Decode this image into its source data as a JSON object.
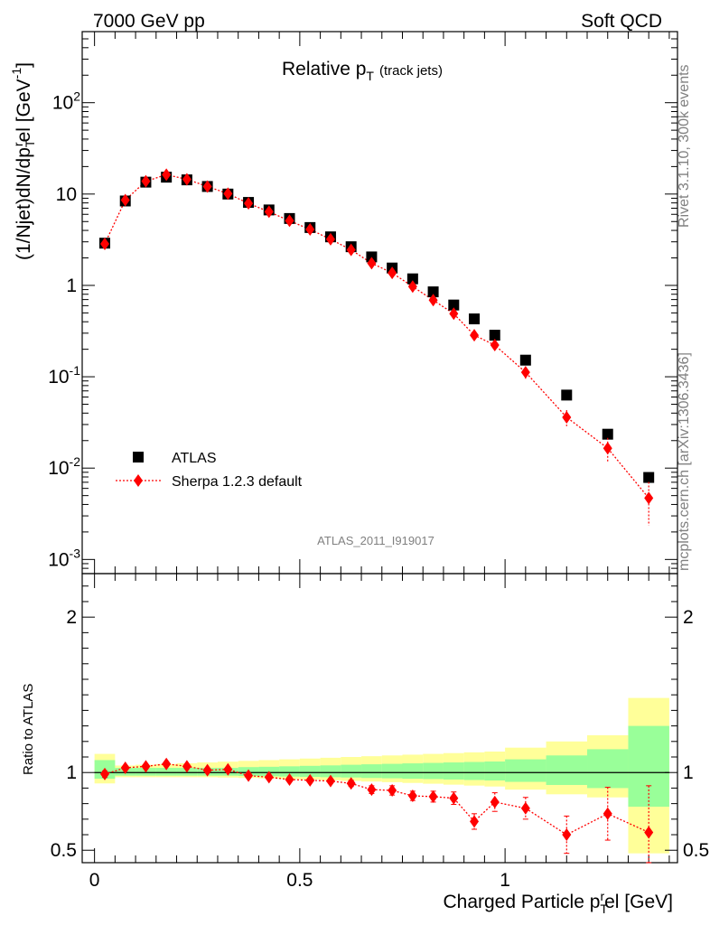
{
  "header": {
    "left": "7000 GeV pp",
    "right": "Soft QCD"
  },
  "side_labels": {
    "top": "Rivet 3.1.10,  300k events",
    "bottom": "mcplots.cern.ch [arXiv:1306.3436]"
  },
  "watermark": "ATLAS_2011_I919017",
  "plot_title": {
    "main": "Relative p",
    "sub": "T",
    "extra": "(track jets)"
  },
  "chart_data": [
    {
      "type": "scatter",
      "panel": "main",
      "ylabel": "(1/Njet)dN/dp_T^rel [GeV^-1]",
      "yscale": "log",
      "ylim": [
        0.0007,
        600
      ],
      "xlim": [
        -0.03,
        1.42
      ],
      "yticks": [
        "10^-3",
        "10^-2",
        "10^-1",
        "1",
        "10",
        "10^2"
      ],
      "legend": {
        "placement": "bottom-left",
        "entries": [
          "ATLAS",
          "Sherpa 1.2.3 default"
        ]
      },
      "x": [
        0.025,
        0.075,
        0.125,
        0.175,
        0.225,
        0.275,
        0.325,
        0.375,
        0.425,
        0.475,
        0.525,
        0.575,
        0.625,
        0.675,
        0.725,
        0.775,
        0.825,
        0.875,
        0.925,
        0.975,
        1.05,
        1.15,
        1.25,
        1.35
      ],
      "series": [
        {
          "name": "ATLAS",
          "color": "#000000",
          "marker": "square",
          "values": [
            2.9,
            8.4,
            13.5,
            15.3,
            14.3,
            12.1,
            10.0,
            8.1,
            6.7,
            5.4,
            4.3,
            3.4,
            2.65,
            2.05,
            1.55,
            1.18,
            0.85,
            0.61,
            0.43,
            0.285,
            0.152,
            0.063,
            0.0235,
            0.0079
          ]
        },
        {
          "name": "Sherpa 1.2.3 default",
          "color": "#ff0000",
          "marker": "diamond",
          "line": "dotted",
          "values": [
            2.85,
            8.6,
            13.8,
            16.3,
            14.5,
            12.1,
            10.1,
            7.9,
            6.4,
            5.1,
            4.1,
            3.2,
            2.45,
            1.75,
            1.37,
            0.97,
            0.69,
            0.49,
            0.285,
            0.222,
            0.112,
            0.036,
            0.0165,
            0.0047
          ],
          "err_frac": [
            0.03,
            0.03,
            0.03,
            0.03,
            0.03,
            0.03,
            0.03,
            0.03,
            0.03,
            0.03,
            0.03,
            0.04,
            0.05,
            0.06,
            0.06,
            0.08,
            0.08,
            0.09,
            0.12,
            0.12,
            0.15,
            0.2,
            0.3,
            0.5
          ]
        }
      ]
    },
    {
      "type": "scatter",
      "panel": "ratio",
      "ylabel": "Ratio to ATLAS",
      "xlabel": "Charged Particle p_T^rel [GeV]",
      "ylim": [
        0.42,
        2.28
      ],
      "xlim": [
        -0.03,
        1.42
      ],
      "yticks": [
        "0.5",
        "1",
        "2"
      ],
      "xticks": [
        "0",
        "0.5",
        "1"
      ],
      "bin_edges": [
        0,
        0.05,
        0.1,
        0.15,
        0.2,
        0.25,
        0.3,
        0.35,
        0.4,
        0.45,
        0.5,
        0.55,
        0.6,
        0.65,
        0.7,
        0.75,
        0.8,
        0.85,
        0.9,
        0.95,
        1.0,
        1.1,
        1.2,
        1.3,
        1.4
      ],
      "band_green": [
        [
          0.96,
          1.08
        ],
        [
          0.98,
          1.03
        ],
        [
          0.98,
          1.03
        ],
        [
          0.98,
          1.03
        ],
        [
          0.98,
          1.03
        ],
        [
          0.98,
          1.03
        ],
        [
          0.98,
          1.03
        ],
        [
          0.978,
          1.035
        ],
        [
          0.976,
          1.037
        ],
        [
          0.974,
          1.04
        ],
        [
          0.972,
          1.043
        ],
        [
          0.97,
          1.046
        ],
        [
          0.968,
          1.05
        ],
        [
          0.965,
          1.053
        ],
        [
          0.963,
          1.056
        ],
        [
          0.96,
          1.059
        ],
        [
          0.958,
          1.062
        ],
        [
          0.955,
          1.065
        ],
        [
          0.952,
          1.068
        ],
        [
          0.949,
          1.071
        ],
        [
          0.94,
          1.085
        ],
        [
          0.92,
          1.11
        ],
        [
          0.9,
          1.15
        ],
        [
          0.78,
          1.3
        ]
      ],
      "band_yellow": [
        [
          0.93,
          1.12
        ],
        [
          0.97,
          1.045
        ],
        [
          0.97,
          1.05
        ],
        [
          0.97,
          1.055
        ],
        [
          0.97,
          1.06
        ],
        [
          0.97,
          1.065
        ],
        [
          0.968,
          1.07
        ],
        [
          0.965,
          1.075
        ],
        [
          0.962,
          1.08
        ],
        [
          0.958,
          1.085
        ],
        [
          0.955,
          1.09
        ],
        [
          0.95,
          1.095
        ],
        [
          0.946,
          1.1
        ],
        [
          0.942,
          1.105
        ],
        [
          0.938,
          1.11
        ],
        [
          0.933,
          1.115
        ],
        [
          0.928,
          1.12
        ],
        [
          0.922,
          1.125
        ],
        [
          0.916,
          1.13
        ],
        [
          0.91,
          1.135
        ],
        [
          0.89,
          1.16
        ],
        [
          0.86,
          1.2
        ],
        [
          0.84,
          1.24
        ],
        [
          0.48,
          1.48
        ]
      ],
      "series": [
        {
          "name": "Sherpa 1.2.3 default",
          "color": "#ff0000",
          "marker": "diamond",
          "line": "dotted",
          "values": [
            0.99,
            1.03,
            1.04,
            1.055,
            1.04,
            1.015,
            1.02,
            0.98,
            0.97,
            0.955,
            0.95,
            0.945,
            0.93,
            0.89,
            0.885,
            0.85,
            0.845,
            0.835,
            0.685,
            0.81,
            0.77,
            0.6,
            0.735,
            0.615
          ],
          "err": [
            0.02,
            0.01,
            0.01,
            0.01,
            0.01,
            0.01,
            0.01,
            0.01,
            0.01,
            0.012,
            0.015,
            0.015,
            0.02,
            0.025,
            0.03,
            0.03,
            0.035,
            0.04,
            0.05,
            0.06,
            0.07,
            0.12,
            0.17,
            0.3
          ]
        }
      ]
    }
  ]
}
